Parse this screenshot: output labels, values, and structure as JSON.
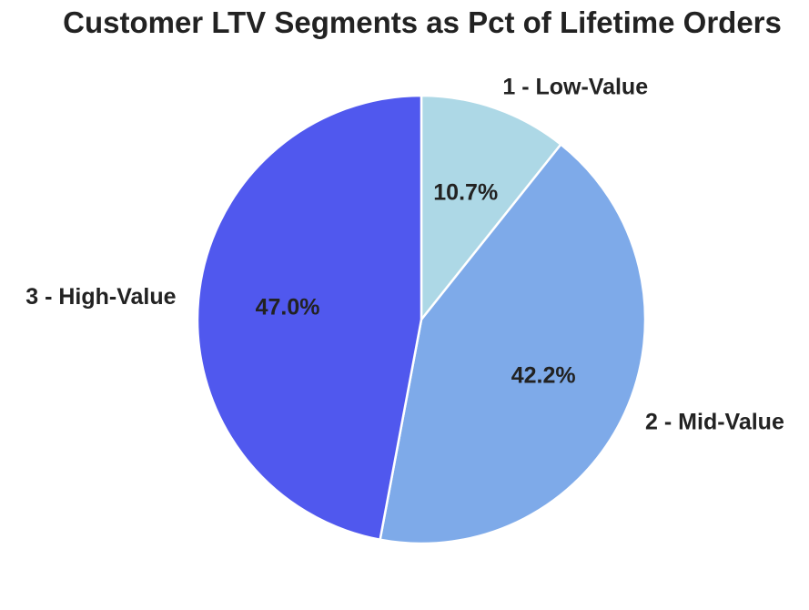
{
  "chart_data": {
    "type": "pie",
    "title": "Customer LTV Segments as Pct of Lifetime Orders",
    "slices": [
      {
        "label": "1 - Low-Value",
        "value": 10.7,
        "pct_label": "10.7%",
        "color": "#add8e6"
      },
      {
        "label": "2 - Mid-Value",
        "value": 42.2,
        "pct_label": "42.2%",
        "color": "#7eaae9"
      },
      {
        "label": "3 - High-Value",
        "value": 47.0,
        "pct_label": "47.0%",
        "color": "#5058ee"
      }
    ],
    "start_angle_deg": 90,
    "direction": "clockwise",
    "legend": "none"
  }
}
